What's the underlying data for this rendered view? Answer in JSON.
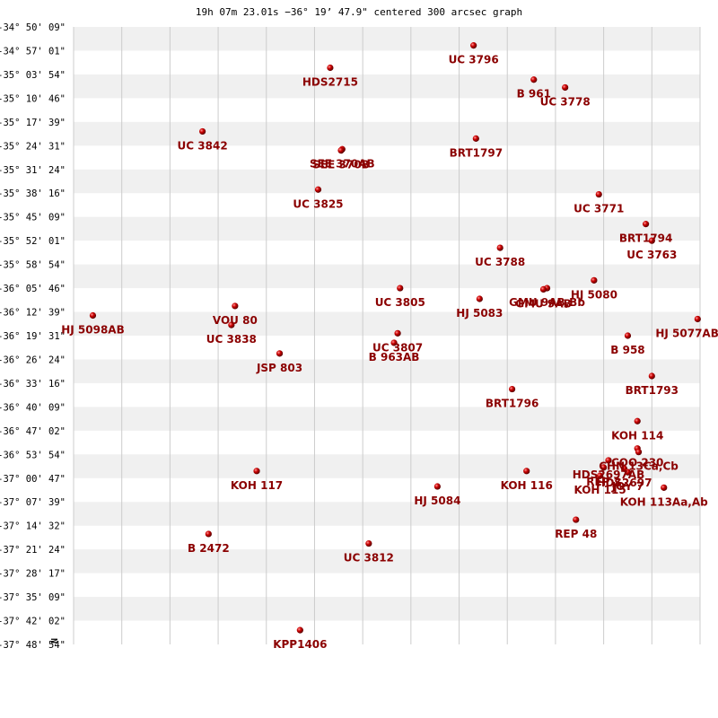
{
  "chart_data": {
    "type": "scatter",
    "title": "19h 07m 23.01s −36° 19’ 47.9\" centered 300 arcsec graph",
    "xlabel": "",
    "ylabel": "",
    "north_marker": "N",
    "xlim": [
      0,
      26
    ],
    "ylim": [
      0,
      26
    ],
    "grid": true,
    "band_color": "#f0f0f0",
    "grid_color": "#cccccc",
    "point_color": "#cc0000",
    "label_color": "#8b0000",
    "y_tick_labels": [
      "-34° 50' 09\"",
      "-34° 57' 01\"",
      "-35° 03' 54\"",
      "-35° 10' 46\"",
      "-35° 17' 39\"",
      "-35° 24' 31\"",
      "-35° 31' 24\"",
      "-35° 38' 16\"",
      "-35° 45' 09\"",
      "-35° 52' 01\"",
      "-35° 58' 54\"",
      "-36° 05' 46\"",
      "-36° 12' 39\"",
      "-36° 19' 31\"",
      "-36° 26' 24\"",
      "-36° 33' 16\"",
      "-36° 40' 09\"",
      "-36° 47' 02\"",
      "-36° 53' 54\"",
      "-37° 00' 47\"",
      "-37° 07' 39\"",
      "-37° 14' 32\"",
      "-37° 21' 24\"",
      "-37° 28' 17\"",
      "-37° 35' 09\"",
      "-37° 42' 02\"",
      "-37° 48' 54\""
    ],
    "series": [
      {
        "name": "UC 3796",
        "x": 16.6,
        "y": 0.78
      },
      {
        "name": "HDS2715",
        "x": 10.65,
        "y": 1.72
      },
      {
        "name": "B   961",
        "x": 19.1,
        "y": 2.22
      },
      {
        "name": "UC 3778",
        "x": 20.4,
        "y": 2.55
      },
      {
        "name": "UC 3842",
        "x": 5.35,
        "y": 4.4
      },
      {
        "name": "BRT1797",
        "x": 16.7,
        "y": 4.7
      },
      {
        "name": "SEE 370AB",
        "x": 11.15,
        "y": 5.15
      },
      {
        "name": "SEE 370B",
        "x": 11.1,
        "y": 5.2
      },
      {
        "name": "UC 3825",
        "x": 10.15,
        "y": 6.85
      },
      {
        "name": "UC 3771",
        "x": 21.8,
        "y": 7.05
      },
      {
        "name": "BRT1794",
        "x": 23.75,
        "y": 8.3
      },
      {
        "name": "UC 3763",
        "x": 24.0,
        "y": 9.0
      },
      {
        "name": "UC 3788",
        "x": 17.7,
        "y": 9.3
      },
      {
        "name": "HJ 5080",
        "x": 21.6,
        "y": 10.67
      },
      {
        "name": "UC 3805",
        "x": 13.55,
        "y": 11.0
      },
      {
        "name": "GMU 9AB,Bb",
        "x": 19.65,
        "y": 11.0
      },
      {
        "name": "GMU 9AB",
        "x": 19.5,
        "y": 11.05
      },
      {
        "name": "HJ 5083",
        "x": 16.85,
        "y": 11.45
      },
      {
        "name": "VOU  80",
        "x": 6.7,
        "y": 11.75
      },
      {
        "name": "HJ 5098AB",
        "x": 0.8,
        "y": 12.15
      },
      {
        "name": "UC 3838",
        "x": 6.55,
        "y": 12.55
      },
      {
        "name": "HJ 5077AB",
        "x": 25.9,
        "y": 12.3
      },
      {
        "name": "UC 3807",
        "x": 13.45,
        "y": 12.9
      },
      {
        "name": "B   963AB",
        "x": 13.3,
        "y": 13.3
      },
      {
        "name": "B   958",
        "x": 23.0,
        "y": 13.0
      },
      {
        "name": "JSP 803",
        "x": 8.55,
        "y": 13.75
      },
      {
        "name": "BRT1793",
        "x": 24.0,
        "y": 14.7
      },
      {
        "name": "BRT1796",
        "x": 18.2,
        "y": 15.25
      },
      {
        "name": "KOH 114",
        "x": 23.4,
        "y": 16.6
      },
      {
        "name": "COO 230",
        "x": 23.4,
        "y": 17.75
      },
      {
        "name": "CHN  13Ca,Cb",
        "x": 23.45,
        "y": 17.9
      },
      {
        "name": "HDS2697AB",
        "x": 22.2,
        "y": 18.25
      },
      {
        "name": "REP  2",
        "x": 22.0,
        "y": 18.55
      },
      {
        "name": "HDS2697",
        "x": 22.85,
        "y": 18.6
      },
      {
        "name": "JOY  7",
        "x": 23.0,
        "y": 18.75
      },
      {
        "name": "KOH 115",
        "x": 21.85,
        "y": 18.9
      },
      {
        "name": "KOH 117",
        "x": 7.6,
        "y": 18.7
      },
      {
        "name": "KOH 116",
        "x": 18.8,
        "y": 18.7
      },
      {
        "name": "KOH 113Aa,Ab",
        "x": 24.5,
        "y": 19.4
      },
      {
        "name": "HJ 5084",
        "x": 15.1,
        "y": 19.35
      },
      {
        "name": "REP  48",
        "x": 20.85,
        "y": 20.75
      },
      {
        "name": "B  2472",
        "x": 5.6,
        "y": 21.35
      },
      {
        "name": "UC 3812",
        "x": 12.25,
        "y": 21.75
      },
      {
        "name": "KPP1406",
        "x": 9.4,
        "y": 25.4
      }
    ]
  }
}
